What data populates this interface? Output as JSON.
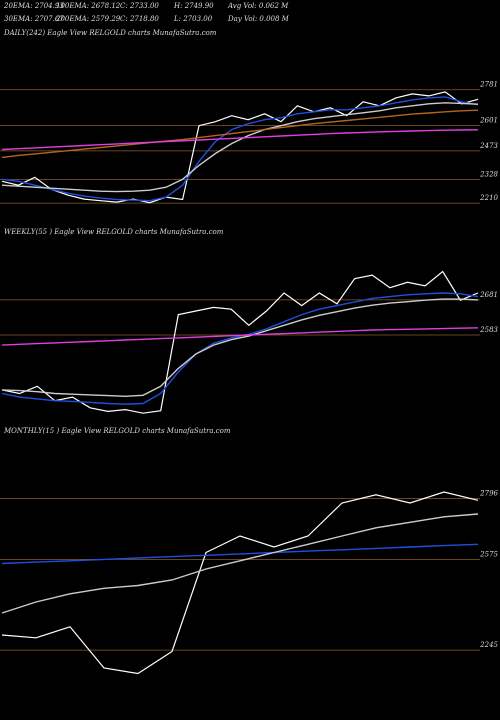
{
  "chart_data": [
    {
      "type": "line",
      "stats": [
        "20EMA: 2704.93",
        "100EMA: 2678.12",
        "C: 2733.00",
        "H: 2749.90",
        "Avg Vol: 0.062  M",
        "30EMA: 2707.67",
        "200EMA: 2579.29",
        "C: 2718.80",
        "L: 2703.00",
        "Day Vol: 0.008  M"
      ],
      "title": "DAILY(242) Eagle  View  RELGOLD charts MunafaSutra.com",
      "ylim": [
        2150,
        2830
      ],
      "yticks": [
        2781,
        2601,
        2473,
        2328,
        2210
      ],
      "grid": true,
      "series": [
        {
          "color": "#ffffff",
          "values": [
            2320,
            2300,
            2340,
            2280,
            2250,
            2230,
            2222,
            2215,
            2230,
            2212,
            2240,
            2228,
            2600,
            2620,
            2650,
            2630,
            2660,
            2620,
            2700,
            2670,
            2690,
            2650,
            2720,
            2700,
            2740,
            2760,
            2750,
            2770,
            2710,
            2733
          ]
        },
        {
          "color": "#1f4fe0",
          "values": [
            2330,
            2320,
            2300,
            2280,
            2260,
            2245,
            2235,
            2228,
            2225,
            2222,
            2240,
            2300,
            2420,
            2520,
            2580,
            2610,
            2630,
            2640,
            2660,
            2670,
            2680,
            2680,
            2690,
            2700,
            2715,
            2730,
            2740,
            2745,
            2720,
            2705
          ]
        },
        {
          "color": "#cccccc",
          "values": [
            2300,
            2295,
            2290,
            2285,
            2280,
            2275,
            2270,
            2268,
            2270,
            2275,
            2290,
            2330,
            2400,
            2460,
            2510,
            2550,
            2580,
            2600,
            2620,
            2635,
            2645,
            2655,
            2665,
            2675,
            2690,
            2700,
            2710,
            2715,
            2712,
            2708
          ]
        },
        {
          "color": "#b5651d",
          "values": [
            2440,
            2450,
            2458,
            2466,
            2474,
            2482,
            2490,
            2498,
            2506,
            2514,
            2522,
            2530,
            2540,
            2550,
            2560,
            2570,
            2580,
            2590,
            2600,
            2610,
            2618,
            2626,
            2634,
            2642,
            2650,
            2658,
            2664,
            2670,
            2675,
            2678
          ]
        },
        {
          "color": "#e040e0",
          "values": [
            2480,
            2484,
            2488,
            2492,
            2496,
            2500,
            2504,
            2508,
            2512,
            2516,
            2520,
            2524,
            2528,
            2532,
            2536,
            2540,
            2544,
            2548,
            2552,
            2556,
            2560,
            2563,
            2566,
            2569,
            2571,
            2573,
            2575,
            2577,
            2578,
            2579
          ]
        }
      ]
    },
    {
      "type": "line",
      "title": "WEEKLY(55 )  Eagle  View  RELGOLD charts MunafaSutra.com",
      "ylim": [
        2360,
        2820
      ],
      "yticks": [
        2681,
        2583
      ],
      "grid": true,
      "series": [
        {
          "color": "#ffffff",
          "values": [
            2430,
            2420,
            2440,
            2400,
            2410,
            2380,
            2370,
            2375,
            2365,
            2372,
            2640,
            2650,
            2660,
            2655,
            2610,
            2650,
            2700,
            2665,
            2700,
            2670,
            2740,
            2750,
            2715,
            2730,
            2720,
            2760,
            2680,
            2700
          ]
        },
        {
          "color": "#1f4fe0",
          "values": [
            2420,
            2410,
            2405,
            2400,
            2398,
            2395,
            2392,
            2390,
            2392,
            2420,
            2480,
            2530,
            2560,
            2575,
            2585,
            2600,
            2620,
            2640,
            2655,
            2665,
            2675,
            2685,
            2690,
            2695,
            2698,
            2700,
            2698,
            2690
          ]
        },
        {
          "color": "#cccccc",
          "values": [
            2430,
            2428,
            2425,
            2420,
            2418,
            2416,
            2414,
            2412,
            2415,
            2440,
            2490,
            2530,
            2555,
            2570,
            2580,
            2595,
            2610,
            2625,
            2638,
            2648,
            2658,
            2666,
            2672,
            2676,
            2680,
            2683,
            2683,
            2681
          ]
        },
        {
          "color": "#e040e0",
          "values": [
            2555,
            2557,
            2559,
            2561,
            2563,
            2565,
            2567,
            2569,
            2571,
            2573,
            2575,
            2577,
            2579,
            2581,
            2583,
            2585,
            2587,
            2589,
            2591,
            2593,
            2595,
            2597,
            2598,
            2599,
            2600,
            2601,
            2602,
            2603
          ]
        }
      ]
    },
    {
      "type": "line",
      "title": "MONTHLY(15 )  Eagle  View  RELGOLD charts MunafaSutra.com",
      "ylim": [
        2100,
        2900
      ],
      "yticks": [
        2796,
        2575,
        2245
      ],
      "grid": true,
      "series": [
        {
          "color": "#ffffff",
          "values": [
            2300,
            2290,
            2330,
            2180,
            2160,
            2240,
            2600,
            2660,
            2620,
            2660,
            2780,
            2810,
            2780,
            2820,
            2790
          ]
        },
        {
          "color": "#1f4fe0",
          "values": [
            2560,
            2565,
            2570,
            2575,
            2580,
            2585,
            2590,
            2595,
            2600,
            2605,
            2610,
            2615,
            2620,
            2625,
            2630
          ]
        },
        {
          "color": "#cccccc",
          "values": [
            2380,
            2420,
            2450,
            2470,
            2480,
            2500,
            2540,
            2570,
            2600,
            2630,
            2660,
            2690,
            2710,
            2730,
            2740
          ]
        }
      ]
    }
  ]
}
